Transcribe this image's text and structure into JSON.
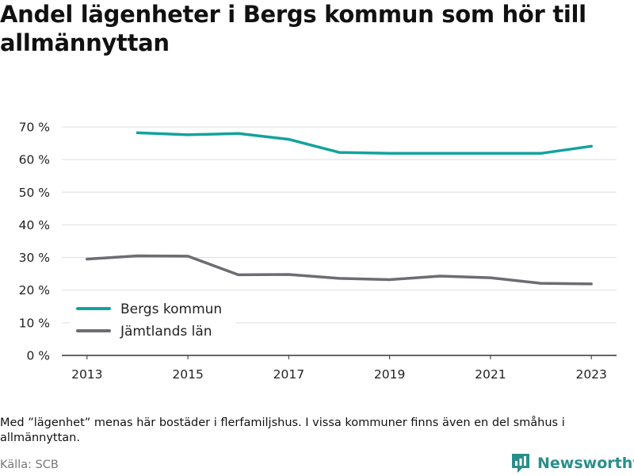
{
  "title": "Andel lägenheter i Bergs kommun som hör till allmännyttan",
  "footnote": "Med ”lägenhet” menas här bostäder i flerfamiljshus. I vissa kommuner finns även en del småhus i allmännyttan.",
  "source": "Källa: SCB",
  "brand": {
    "name": "Newsworthy",
    "icon": "newsworthy-logo-icon"
  },
  "colors": {
    "bergs": "#12a39b",
    "jamtland": "#6e6b72",
    "grid": "#dddddd",
    "axis": "#333333"
  },
  "chart_data": {
    "type": "line",
    "title": "Andel lägenheter i Bergs kommun som hör till allmännyttan",
    "xlabel": "",
    "ylabel": "",
    "xlim": [
      2012.5,
      2023.5
    ],
    "ylim": [
      0,
      70
    ],
    "x_ticks": [
      2013,
      2015,
      2017,
      2019,
      2021,
      2023
    ],
    "y_ticks": [
      0,
      10,
      20,
      30,
      40,
      50,
      60,
      70
    ],
    "y_tick_suffix": " %",
    "grid": true,
    "legend_position": "bottom-left",
    "series": [
      {
        "name": "Bergs kommun",
        "color": "#12a39b",
        "points": [
          [
            2014,
            68.2
          ],
          [
            2015,
            67.6
          ],
          [
            2016,
            68.0
          ],
          [
            2017,
            66.2
          ],
          [
            2018,
            62.2
          ],
          [
            2019,
            61.9
          ],
          [
            2020,
            61.9
          ],
          [
            2021,
            61.9
          ],
          [
            2022,
            61.9
          ],
          [
            2023,
            64.1
          ]
        ]
      },
      {
        "name": "Jämtlands län",
        "color": "#6e6b72",
        "points": [
          [
            2013,
            29.5
          ],
          [
            2014,
            30.5
          ],
          [
            2015,
            30.4
          ],
          [
            2016,
            24.7
          ],
          [
            2017,
            24.8
          ],
          [
            2018,
            23.6
          ],
          [
            2019,
            23.2
          ],
          [
            2020,
            24.3
          ],
          [
            2021,
            23.8
          ],
          [
            2022,
            22.1
          ],
          [
            2023,
            21.9
          ]
        ]
      }
    ]
  }
}
